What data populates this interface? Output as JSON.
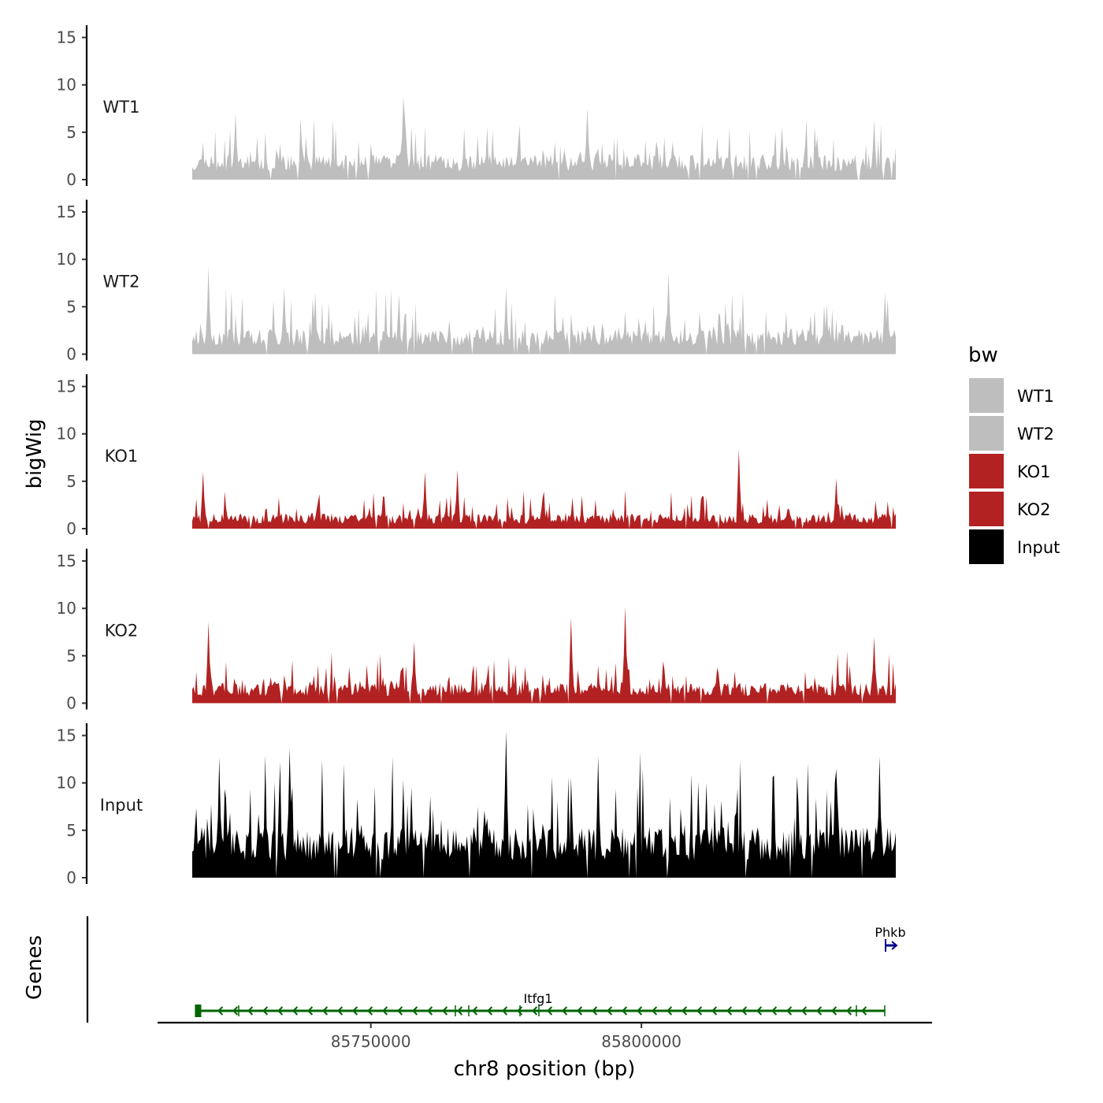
{
  "chart_data": {
    "type": "area",
    "title": "",
    "ylabel": "bigWig",
    "xlabel": "chr8 position (bp)",
    "genes_label": "Genes",
    "x_range": [
      85717000,
      85847000
    ],
    "x_ticks": [
      85750000,
      85800000
    ],
    "x_tick_labels": [
      "85750000",
      "85800000"
    ],
    "ylim": [
      0,
      15.5
    ],
    "y_ticks": [
      0,
      5,
      10,
      15
    ],
    "y_tick_labels": [
      "0",
      "5",
      "10",
      "15"
    ],
    "series": [
      {
        "name": "WT1",
        "label": "WT1",
        "color": "#bebebe",
        "baseline": 2.0,
        "max": 8.7,
        "seed": 11,
        "peaks": [
          [
            85756000,
            8.7
          ],
          [
            85725000,
            7.0
          ],
          [
            85790000,
            7.6
          ],
          [
            85843000,
            6.3
          ]
        ]
      },
      {
        "name": "WT2",
        "label": "WT2",
        "color": "#bebebe",
        "baseline": 2.0,
        "max": 9.2,
        "seed": 23,
        "peaks": [
          [
            85720000,
            9.2
          ],
          [
            85734000,
            7.0
          ],
          [
            85775000,
            7.0
          ],
          [
            85805000,
            8.6
          ],
          [
            85845000,
            6.5
          ]
        ]
      },
      {
        "name": "KO1",
        "label": "KO1",
        "color": "#b22222",
        "baseline": 1.2,
        "max": 8.4,
        "seed": 37,
        "peaks": [
          [
            85818000,
            8.4
          ],
          [
            85766000,
            6.2
          ],
          [
            85760000,
            6.0
          ],
          [
            85719000,
            6.0
          ],
          [
            85836000,
            5.3
          ]
        ]
      },
      {
        "name": "KO2",
        "label": "KO2",
        "color": "#b22222",
        "baseline": 1.6,
        "max": 10.2,
        "seed": 53,
        "peaks": [
          [
            85720000,
            8.6
          ],
          [
            85787000,
            9.0
          ],
          [
            85797000,
            10.2
          ],
          [
            85843000,
            7.0
          ],
          [
            85758000,
            6.5
          ]
        ]
      },
      {
        "name": "Input",
        "label": "Input",
        "color": "#000000",
        "baseline": 4.0,
        "max": 15.5,
        "seed": 71,
        "peaks": [
          [
            85722000,
            12.7
          ],
          [
            85735000,
            13.7
          ],
          [
            85775000,
            15.5
          ],
          [
            85792000,
            12.8
          ],
          [
            85844000,
            12.8
          ],
          [
            85756000,
            10.3
          ],
          [
            85812000,
            10.0
          ]
        ]
      }
    ],
    "genes": [
      {
        "name": "Itfg1",
        "start": 85717500,
        "end": 85845000,
        "strand": "-",
        "color": "#006400"
      },
      {
        "name": "Phkb",
        "start": 85845000,
        "end": 85846500,
        "strand": "+",
        "color": "#00008b"
      }
    ],
    "legend": {
      "title": "bw",
      "position": "right",
      "items": [
        {
          "label": "WT1",
          "color": "#bebebe"
        },
        {
          "label": "WT2",
          "color": "#bebebe"
        },
        {
          "label": "KO1",
          "color": "#b22222"
        },
        {
          "label": "KO2",
          "color": "#b22222"
        },
        {
          "label": "Input",
          "color": "#000000"
        }
      ]
    }
  }
}
